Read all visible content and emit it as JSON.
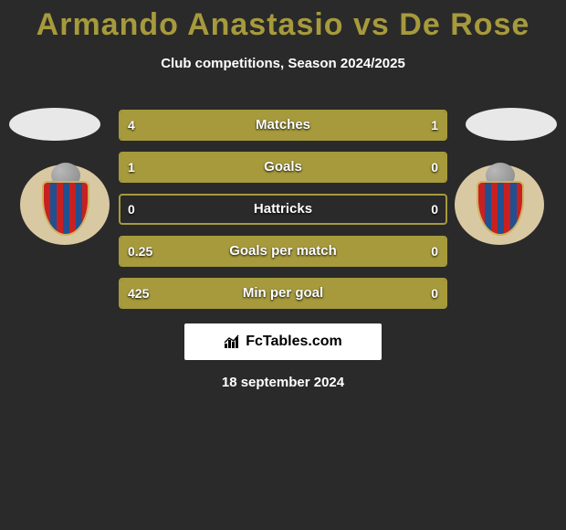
{
  "title_color": "#a69a3c",
  "bar_color": "#a69a3c",
  "title": "Armando Anastasio vs De Rose",
  "subtitle": "Club competitions, Season 2024/2025",
  "date_text": "18 september 2024",
  "brand_text": "FcTables.com",
  "stats": [
    {
      "label": "Matches",
      "left_val": "4",
      "right_val": "1",
      "left_pct": 80,
      "right_pct": 20
    },
    {
      "label": "Goals",
      "left_val": "1",
      "right_val": "0",
      "left_pct": 100,
      "right_pct": 0
    },
    {
      "label": "Hattricks",
      "left_val": "0",
      "right_val": "0",
      "left_pct": 0,
      "right_pct": 0
    },
    {
      "label": "Goals per match",
      "left_val": "0.25",
      "right_val": "0",
      "left_pct": 100,
      "right_pct": 0
    },
    {
      "label": "Min per goal",
      "left_val": "425",
      "right_val": "0",
      "left_pct": 100,
      "right_pct": 0
    }
  ]
}
